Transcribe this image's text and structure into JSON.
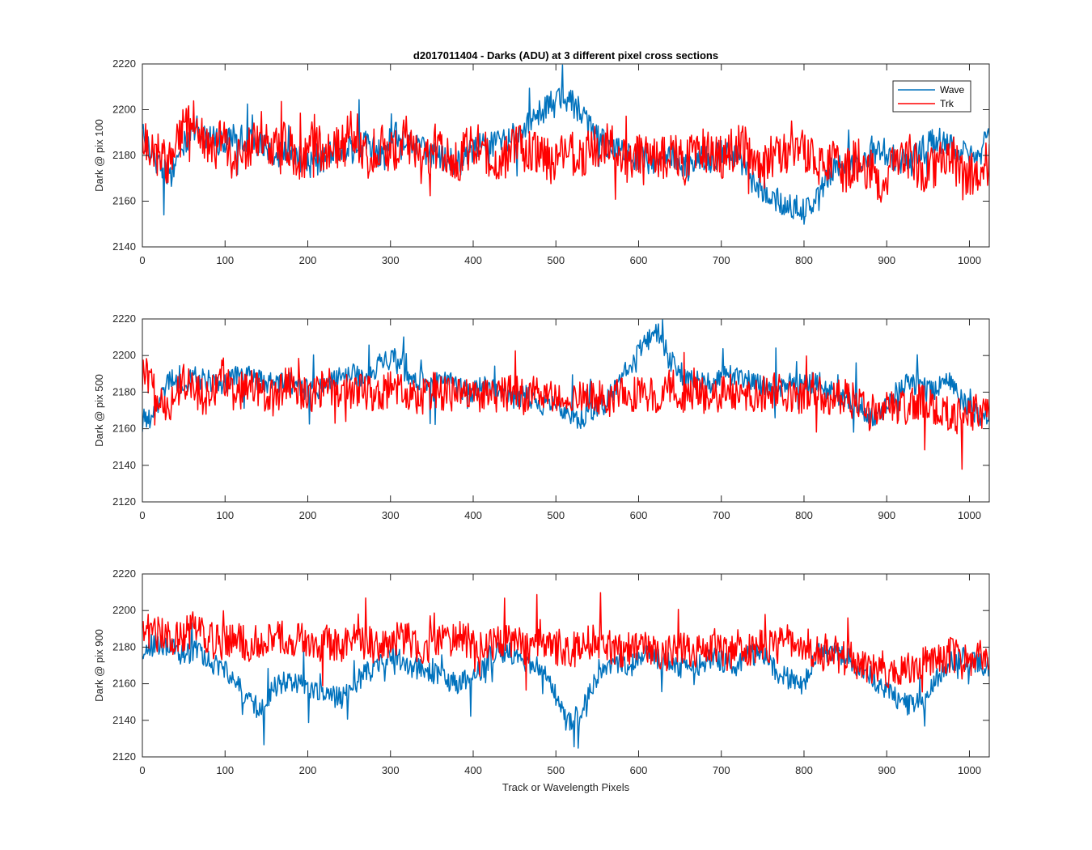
{
  "title": "d2017011404 - Darks (ADU) at 3 different pixel cross sections",
  "xlabel": "Track or Wavelength Pixels",
  "legend": [
    {
      "name": "Wave",
      "color": "#0072BD"
    },
    {
      "name": "Trk",
      "color": "#FF0000"
    }
  ],
  "chart_data": [
    {
      "type": "line",
      "ylabel": "Dark @ pix 100",
      "xlim": [
        0,
        1024
      ],
      "ylim": [
        2140,
        2220
      ],
      "xticks": [
        0,
        100,
        200,
        300,
        400,
        500,
        600,
        700,
        800,
        900,
        1000
      ],
      "yticks": [
        2140,
        2160,
        2180,
        2200,
        2220
      ],
      "legend_position": "top-right",
      "x_step": 16,
      "series": [
        {
          "name": "Wave",
          "color": "#0072BD",
          "values": [
            2190,
            2178,
            2170,
            2183,
            2192,
            2188,
            2185,
            2190,
            2186,
            2184,
            2180,
            2182,
            2178,
            2175,
            2180,
            2184,
            2182,
            2186,
            2180,
            2190,
            2185,
            2183,
            2180,
            2178,
            2176,
            2182,
            2186,
            2184,
            2188,
            2192,
            2198,
            2204,
            2205,
            2200,
            2190,
            2185,
            2182,
            2180,
            2178,
            2176,
            2180,
            2175,
            2180,
            2178,
            2182,
            2180,
            2170,
            2165,
            2160,
            2158,
            2155,
            2160,
            2172,
            2178,
            2175,
            2180,
            2182,
            2178,
            2176,
            2184,
            2188,
            2183,
            2182,
            2178,
            2188
          ]
        },
        {
          "name": "Trk",
          "color": "#FF0000",
          "values": [
            2188,
            2182,
            2176,
            2190,
            2195,
            2180,
            2186,
            2178,
            2184,
            2190,
            2182,
            2186,
            2176,
            2188,
            2180,
            2184,
            2192,
            2178,
            2186,
            2180,
            2188,
            2176,
            2184,
            2182,
            2178,
            2186,
            2180,
            2174,
            2185,
            2182,
            2180,
            2176,
            2184,
            2178,
            2182,
            2186,
            2180,
            2176,
            2184,
            2178,
            2182,
            2176,
            2184,
            2180,
            2178,
            2186,
            2180,
            2174,
            2184,
            2178,
            2182,
            2176,
            2180,
            2172,
            2178,
            2174,
            2168,
            2176,
            2180,
            2172,
            2176,
            2182,
            2170,
            2174,
            2176
          ]
        }
      ]
    },
    {
      "type": "line",
      "ylabel": "Dark @ pix 500",
      "xlim": [
        0,
        1024
      ],
      "ylim": [
        2120,
        2220
      ],
      "xticks": [
        0,
        100,
        200,
        300,
        400,
        500,
        600,
        700,
        800,
        900,
        1000
      ],
      "yticks": [
        2120,
        2140,
        2160,
        2180,
        2200,
        2220
      ],
      "x_step": 16,
      "series": [
        {
          "name": "Wave",
          "color": "#0072BD",
          "values": [
            2164,
            2172,
            2186,
            2184,
            2188,
            2186,
            2184,
            2188,
            2190,
            2186,
            2184,
            2186,
            2182,
            2180,
            2184,
            2188,
            2190,
            2186,
            2196,
            2198,
            2190,
            2186,
            2184,
            2188,
            2182,
            2180,
            2184,
            2180,
            2176,
            2178,
            2172,
            2174,
            2168,
            2165,
            2170,
            2174,
            2186,
            2196,
            2208,
            2212,
            2196,
            2188,
            2186,
            2184,
            2190,
            2188,
            2186,
            2184,
            2182,
            2186,
            2184,
            2186,
            2180,
            2176,
            2174,
            2166,
            2170,
            2180,
            2186,
            2180,
            2182,
            2186,
            2174,
            2168,
            2166
          ]
        },
        {
          "name": "Trk",
          "color": "#FF0000",
          "values": [
            2190,
            2180,
            2172,
            2186,
            2180,
            2176,
            2188,
            2178,
            2184,
            2180,
            2176,
            2186,
            2180,
            2178,
            2184,
            2176,
            2182,
            2180,
            2178,
            2184,
            2180,
            2176,
            2182,
            2178,
            2180,
            2176,
            2182,
            2178,
            2180,
            2176,
            2182,
            2178,
            2180,
            2176,
            2180,
            2174,
            2182,
            2178,
            2180,
            2176,
            2184,
            2178,
            2180,
            2174,
            2182,
            2178,
            2176,
            2180,
            2182,
            2176,
            2178,
            2180,
            2176,
            2178,
            2174,
            2168,
            2174,
            2170,
            2172,
            2176,
            2170,
            2168,
            2166,
            2170,
            2168
          ]
        }
      ]
    },
    {
      "type": "line",
      "ylabel": "Dark @ pix 900",
      "xlim": [
        0,
        1024
      ],
      "ylim": [
        2120,
        2220
      ],
      "xticks": [
        0,
        100,
        200,
        300,
        400,
        500,
        600,
        700,
        800,
        900,
        1000
      ],
      "yticks": [
        2120,
        2140,
        2160,
        2180,
        2200,
        2220
      ],
      "x_step": 16,
      "series": [
        {
          "name": "Wave",
          "color": "#0072BD",
          "values": [
            2176,
            2182,
            2180,
            2176,
            2178,
            2172,
            2168,
            2164,
            2150,
            2146,
            2158,
            2162,
            2160,
            2156,
            2154,
            2152,
            2160,
            2166,
            2172,
            2176,
            2170,
            2168,
            2166,
            2162,
            2160,
            2164,
            2170,
            2178,
            2176,
            2172,
            2168,
            2158,
            2140,
            2142,
            2160,
            2168,
            2172,
            2170,
            2176,
            2174,
            2172,
            2168,
            2170,
            2174,
            2172,
            2170,
            2176,
            2174,
            2166,
            2162,
            2160,
            2176,
            2178,
            2176,
            2170,
            2164,
            2158,
            2152,
            2148,
            2150,
            2162,
            2172,
            2174,
            2172,
            2168
          ]
        },
        {
          "name": "Trk",
          "color": "#FF0000",
          "values": [
            2192,
            2188,
            2184,
            2186,
            2190,
            2184,
            2182,
            2186,
            2180,
            2184,
            2188,
            2182,
            2186,
            2180,
            2184,
            2178,
            2186,
            2182,
            2180,
            2184,
            2186,
            2180,
            2182,
            2184,
            2186,
            2182,
            2178,
            2184,
            2182,
            2180,
            2186,
            2182,
            2176,
            2180,
            2184,
            2182,
            2178,
            2180,
            2182,
            2178,
            2176,
            2180,
            2178,
            2182,
            2176,
            2180,
            2178,
            2182,
            2180,
            2184,
            2180,
            2176,
            2178,
            2174,
            2172,
            2170,
            2168,
            2166,
            2168,
            2172,
            2170,
            2176,
            2172,
            2174,
            2176
          ]
        }
      ]
    }
  ]
}
